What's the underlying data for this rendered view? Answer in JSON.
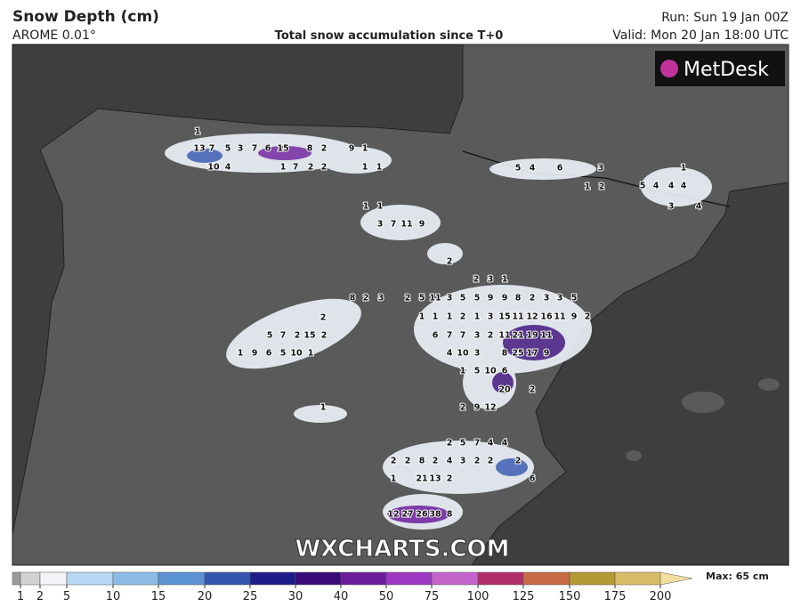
{
  "header": {
    "title": "Snow Depth (cm)",
    "model": "AROME 0.01°",
    "subtitle": "Total snow accumulation since T+0",
    "run": "Run: Sun 19 Jan 00Z",
    "valid": "Valid: Mon 20 Jan 18:00 UTC"
  },
  "logo": "MetDesk",
  "watermark": "WXCHARTS.COM",
  "legend": {
    "ticks": [
      1,
      2,
      5,
      10,
      15,
      20,
      25,
      30,
      40,
      50,
      75,
      100,
      125,
      150,
      175,
      200
    ],
    "colors": [
      "#9a9a9a",
      "#d2d2d2",
      "#f4f4f8",
      "#b7d8f4",
      "#8cbbe6",
      "#5b93d2",
      "#3555b0",
      "#1c1c8a",
      "#3a0b78",
      "#6b1d9c",
      "#9c38c2",
      "#c565cc",
      "#b12e6c",
      "#c86a44",
      "#b39a34",
      "#d9bd66",
      "#f3dfa0"
    ],
    "max": "Max: 65 cm"
  },
  "map": {
    "labels": [
      "1",
      "13",
      "7",
      "5",
      "3",
      "7",
      "6",
      "15",
      "8",
      "2",
      "9",
      "1",
      "10",
      "4",
      "1",
      "7",
      "2",
      "2",
      "1",
      "1",
      "5",
      "4",
      "6",
      "3",
      "2",
      "1",
      "1",
      "5",
      "4",
      "4",
      "4",
      "3",
      "4",
      "1",
      "1",
      "3",
      "7",
      "11",
      "9",
      "2",
      "8",
      "2",
      "3",
      "2",
      "5",
      "7",
      "2",
      "15",
      "2",
      "1",
      "9",
      "6",
      "5",
      "10",
      "1",
      "2",
      "3",
      "1",
      "2",
      "5",
      "11",
      "3",
      "5",
      "5",
      "9",
      "9",
      "8",
      "2",
      "3",
      "3",
      "5",
      "1",
      "1",
      "1",
      "2",
      "1",
      "3",
      "15",
      "11",
      "12",
      "16",
      "11",
      "9",
      "2",
      "6",
      "7",
      "7",
      "3",
      "2",
      "11",
      "21",
      "19",
      "11",
      "4",
      "10",
      "3",
      "8",
      "25",
      "17",
      "9",
      "1",
      "5",
      "10",
      "6",
      "20",
      "2",
      "2",
      "9",
      "12",
      "1",
      "2",
      "5",
      "7",
      "4",
      "4",
      "2",
      "2",
      "8",
      "2",
      "4",
      "3",
      "2",
      "2",
      "2",
      "1",
      "21",
      "13",
      "2",
      "6",
      "12",
      "27",
      "26",
      "38",
      "8"
    ]
  }
}
